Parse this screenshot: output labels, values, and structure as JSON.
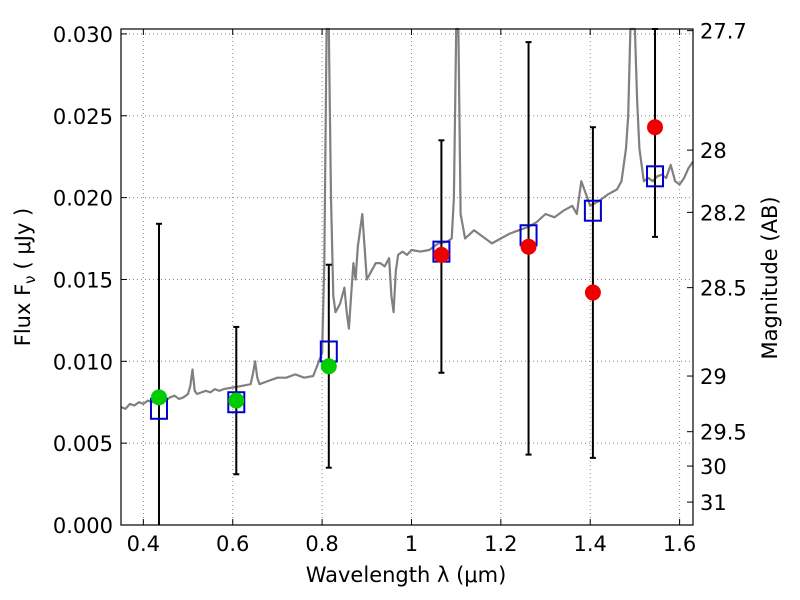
{
  "chart_data": {
    "type": "scatter",
    "xlabel": "Wavelength  λ (μm)",
    "ylabel": "Flux  F",
    "ylabel_sub": "ν",
    "ylabel_unit": "( μJy )",
    "y2label": "Magnitude (AB)",
    "xlim": [
      0.35,
      1.63
    ],
    "ylim": [
      0.0,
      0.0303
    ],
    "grid": true,
    "x_ticks": [
      0.4,
      0.6,
      0.8,
      1.0,
      1.2,
      1.4,
      1.6
    ],
    "x_tick_labels": [
      "0.4",
      "0.6",
      "0.8",
      "1",
      "1.2",
      "1.4",
      "1.6"
    ],
    "y_ticks": [
      0.0,
      0.005,
      0.01,
      0.015,
      0.02,
      0.025,
      0.03
    ],
    "y_tick_labels": [
      "0.000",
      "0.005",
      "0.010",
      "0.015",
      "0.020",
      "0.025",
      "0.030"
    ],
    "y2_ticks": [
      {
        "flux": 0.0302,
        "label": "27.7"
      },
      {
        "flux": 0.0229,
        "label": "28"
      },
      {
        "flux": 0.0191,
        "label": "28.2"
      },
      {
        "flux": 0.0145,
        "label": "28.5"
      },
      {
        "flux": 0.0091,
        "label": "29"
      },
      {
        "flux": 0.0057,
        "label": "29.5"
      },
      {
        "flux": 0.0036,
        "label": "30"
      },
      {
        "flux": 0.0014,
        "label": "31"
      }
    ],
    "colors": {
      "spectrum": "#808080",
      "model_box": "#0000cc",
      "green": "#00cc00",
      "red": "#ee0000",
      "errorbar": "#000000",
      "grid": "#888888"
    },
    "spectrum": {
      "x": [
        0.35,
        0.36,
        0.37,
        0.38,
        0.39,
        0.4,
        0.41,
        0.42,
        0.43,
        0.44,
        0.45,
        0.46,
        0.47,
        0.48,
        0.49,
        0.5,
        0.505,
        0.51,
        0.515,
        0.52,
        0.53,
        0.54,
        0.55,
        0.56,
        0.57,
        0.58,
        0.6,
        0.62,
        0.64,
        0.645,
        0.65,
        0.655,
        0.66,
        0.68,
        0.7,
        0.72,
        0.74,
        0.76,
        0.78,
        0.79,
        0.8,
        0.805,
        0.81,
        0.815,
        0.82,
        0.825,
        0.83,
        0.84,
        0.85,
        0.855,
        0.86,
        0.865,
        0.87,
        0.875,
        0.88,
        0.89,
        0.9,
        0.91,
        0.92,
        0.93,
        0.94,
        0.95,
        0.955,
        0.96,
        0.965,
        0.97,
        0.98,
        0.99,
        1.0,
        1.02,
        1.04,
        1.06,
        1.08,
        1.09,
        1.095,
        1.1,
        1.105,
        1.11,
        1.12,
        1.14,
        1.16,
        1.18,
        1.2,
        1.22,
        1.24,
        1.26,
        1.28,
        1.3,
        1.32,
        1.34,
        1.36,
        1.37,
        1.38,
        1.4,
        1.42,
        1.44,
        1.46,
        1.47,
        1.48,
        1.485,
        1.49,
        1.495,
        1.5,
        1.505,
        1.51,
        1.52,
        1.53,
        1.54,
        1.55,
        1.56,
        1.57,
        1.58,
        1.59,
        1.6,
        1.61,
        1.62,
        1.63
      ],
      "y": [
        0.0072,
        0.0071,
        0.0074,
        0.0073,
        0.0075,
        0.0074,
        0.0076,
        0.0075,
        0.0077,
        0.0078,
        0.0076,
        0.0078,
        0.0079,
        0.0077,
        0.0078,
        0.008,
        0.0085,
        0.0095,
        0.0082,
        0.008,
        0.0081,
        0.0082,
        0.0081,
        0.0083,
        0.0082,
        0.0083,
        0.0084,
        0.0085,
        0.0086,
        0.0092,
        0.01,
        0.009,
        0.0086,
        0.0088,
        0.009,
        0.009,
        0.0092,
        0.009,
        0.0091,
        0.0098,
        0.0105,
        0.016,
        0.0303,
        0.0303,
        0.02,
        0.014,
        0.013,
        0.0135,
        0.0145,
        0.013,
        0.012,
        0.014,
        0.016,
        0.015,
        0.017,
        0.019,
        0.015,
        0.0155,
        0.016,
        0.016,
        0.0158,
        0.0163,
        0.014,
        0.013,
        0.0155,
        0.0165,
        0.0167,
        0.0165,
        0.0168,
        0.0167,
        0.0168,
        0.0172,
        0.0173,
        0.0175,
        0.02,
        0.0303,
        0.0303,
        0.019,
        0.0175,
        0.018,
        0.0176,
        0.0172,
        0.0175,
        0.0178,
        0.018,
        0.0182,
        0.0185,
        0.019,
        0.0188,
        0.0192,
        0.0195,
        0.019,
        0.021,
        0.0195,
        0.0198,
        0.0202,
        0.0205,
        0.021,
        0.023,
        0.025,
        0.0303,
        0.0303,
        0.0303,
        0.026,
        0.023,
        0.021,
        0.0212,
        0.021,
        0.0213,
        0.0214,
        0.0212,
        0.022,
        0.021,
        0.0208,
        0.0212,
        0.0218,
        0.0222
      ]
    },
    "model_boxes": [
      {
        "x": 0.435,
        "y": 0.0071
      },
      {
        "x": 0.608,
        "y": 0.0075
      },
      {
        "x": 0.815,
        "y": 0.0106
      },
      {
        "x": 1.067,
        "y": 0.0167
      },
      {
        "x": 1.262,
        "y": 0.0177
      },
      {
        "x": 1.406,
        "y": 0.0192
      },
      {
        "x": 1.545,
        "y": 0.0213
      }
    ],
    "points": [
      {
        "x": 0.435,
        "y": 0.0078,
        "err_low": 0.0,
        "err_high": 0.0184,
        "color": "green"
      },
      {
        "x": 0.608,
        "y": 0.0076,
        "err_low": 0.0031,
        "err_high": 0.0121,
        "color": "green"
      },
      {
        "x": 0.815,
        "y": 0.0097,
        "err_low": 0.0035,
        "err_high": 0.0159,
        "color": "green"
      },
      {
        "x": 1.067,
        "y": 0.0165,
        "err_low": 0.0093,
        "err_high": 0.0235,
        "color": "red"
      },
      {
        "x": 1.262,
        "y": 0.017,
        "err_low": 0.0043,
        "err_high": 0.0295,
        "color": "red"
      },
      {
        "x": 1.406,
        "y": 0.0142,
        "err_low": 0.0041,
        "err_high": 0.0243,
        "color": "red"
      },
      {
        "x": 1.545,
        "y": 0.0243,
        "err_low": 0.0176,
        "err_high": 0.0303,
        "color": "red"
      }
    ]
  }
}
